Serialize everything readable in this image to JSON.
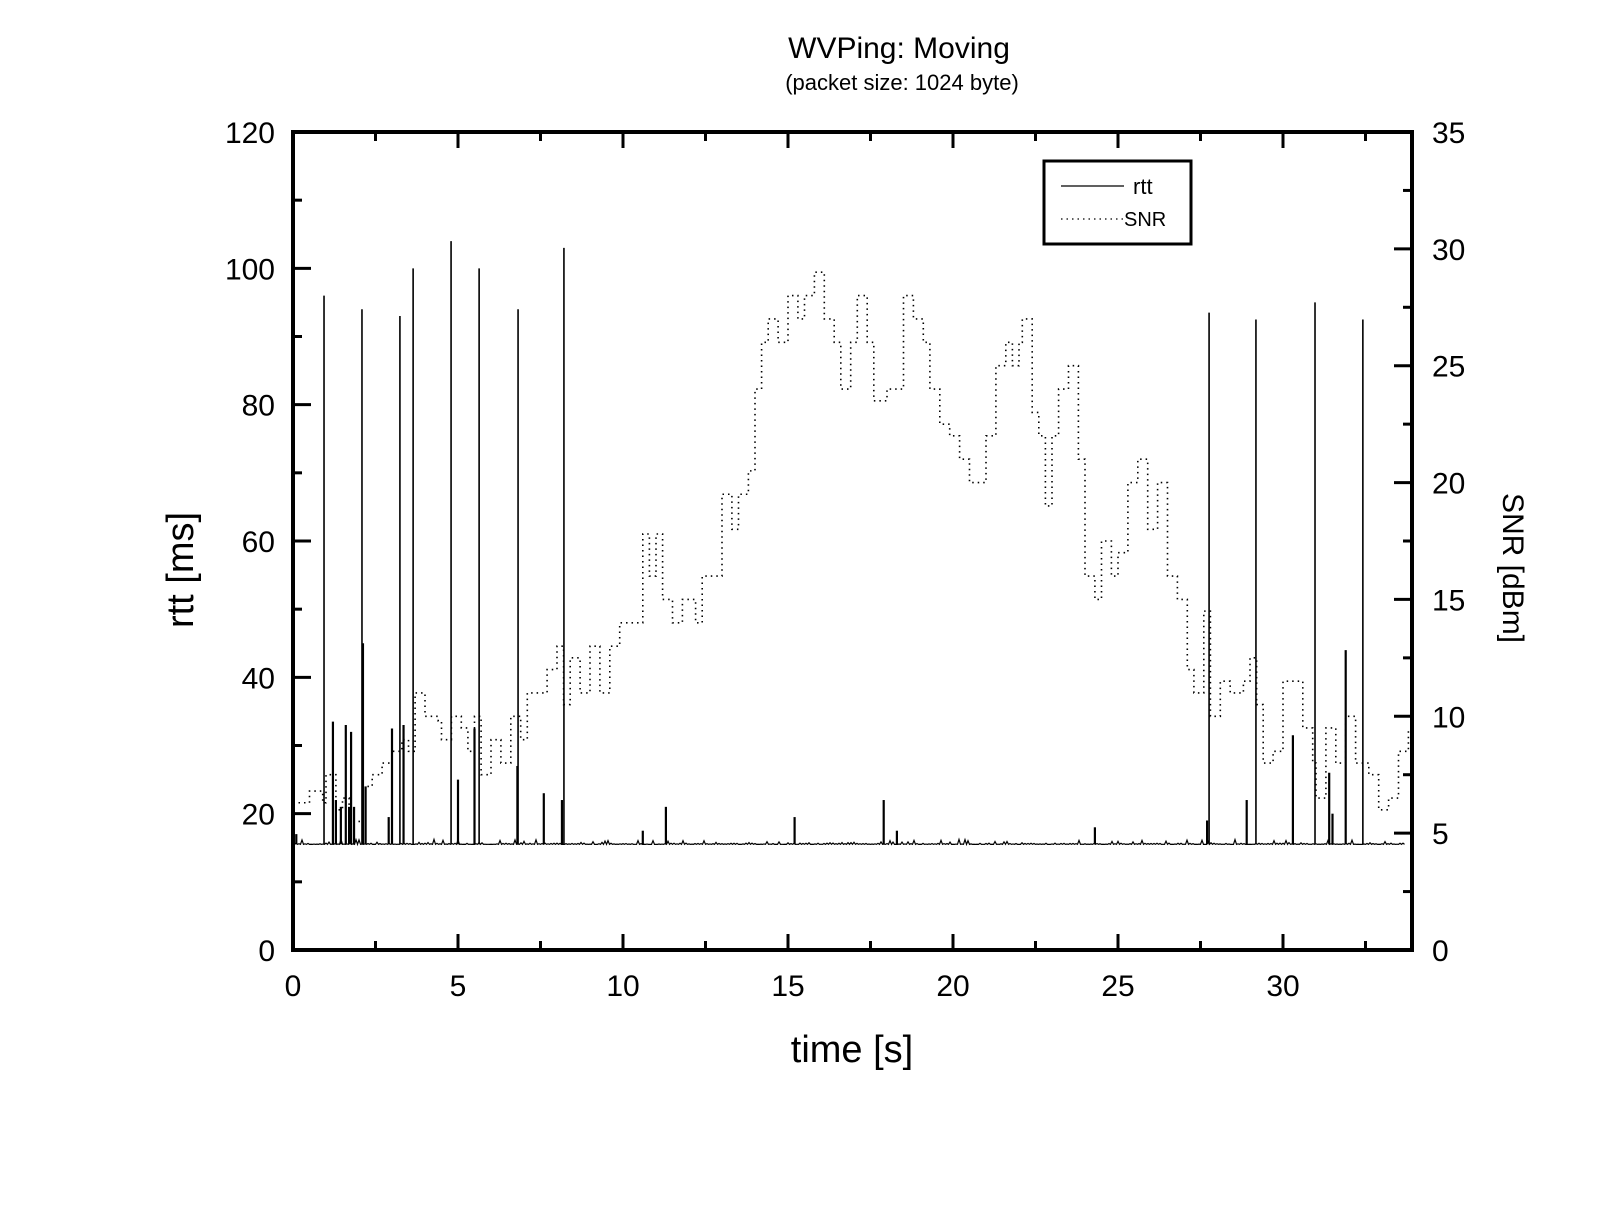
{
  "chart_data": {
    "type": "line",
    "title": "WVPing: Moving",
    "subtitle": "(packet size: 1024 byte)",
    "xlabel": "time [s]",
    "ylabel": "rtt [ms]",
    "y2label": "SNR [dBm]",
    "xlim": [
      0,
      33.9
    ],
    "ylim": [
      0,
      120
    ],
    "y2lim": [
      0,
      35
    ],
    "xticks": [
      0,
      5,
      10,
      15,
      20,
      25,
      30
    ],
    "yticks": [
      0,
      20,
      40,
      60,
      80,
      100,
      120
    ],
    "y2ticks": [
      0,
      5,
      10,
      15,
      20,
      25,
      30,
      35
    ],
    "grid": false,
    "legend": {
      "position": "upper-right",
      "entries": [
        "rtt",
        "SNR"
      ]
    },
    "series": [
      {
        "name": "rtt",
        "axis": "left",
        "style": "solid",
        "baseline": 15.5,
        "spikes": [
          [
            0.1,
            17
          ],
          [
            0.94,
            96
          ],
          [
            1.21,
            33.5
          ],
          [
            1.3,
            22
          ],
          [
            1.45,
            21
          ],
          [
            1.6,
            33
          ],
          [
            1.7,
            21
          ],
          [
            1.76,
            32
          ],
          [
            1.85,
            21
          ],
          [
            2.09,
            94
          ],
          [
            2.12,
            45
          ],
          [
            2.2,
            24
          ],
          [
            2.9,
            19.5
          ],
          [
            3.0,
            32.5
          ],
          [
            3.24,
            93
          ],
          [
            3.35,
            33
          ],
          [
            3.64,
            100
          ],
          [
            4.79,
            104
          ],
          [
            5.0,
            25
          ],
          [
            5.5,
            32.5
          ],
          [
            5.64,
            100
          ],
          [
            6.82,
            94
          ],
          [
            6.8,
            27
          ],
          [
            7.6,
            23
          ],
          [
            8.21,
            103
          ],
          [
            8.15,
            22
          ],
          [
            10.6,
            17.5
          ],
          [
            11.3,
            21
          ],
          [
            15.2,
            19.5
          ],
          [
            17.9,
            22
          ],
          [
            18.3,
            17.5
          ],
          [
            24.3,
            18
          ],
          [
            27.76,
            93.5
          ],
          [
            27.7,
            19
          ],
          [
            28.9,
            22
          ],
          [
            29.18,
            92.5
          ],
          [
            30.3,
            31.5
          ],
          [
            30.97,
            95
          ],
          [
            31.4,
            26
          ],
          [
            31.5,
            20
          ],
          [
            31.9,
            44
          ],
          [
            32.42,
            92.5
          ]
        ]
      },
      {
        "name": "SNR",
        "axis": "right",
        "style": "dotted",
        "points": [
          [
            0.0,
            6.3
          ],
          [
            0.5,
            6.8
          ],
          [
            0.9,
            6.3
          ],
          [
            1.0,
            7.5
          ],
          [
            1.3,
            6.0
          ],
          [
            1.5,
            6.5
          ],
          [
            1.7,
            5.5
          ],
          [
            2.1,
            7.0
          ],
          [
            2.4,
            7.5
          ],
          [
            2.7,
            8.0
          ],
          [
            3.0,
            8.5
          ],
          [
            3.3,
            9.0
          ],
          [
            3.5,
            8.5
          ],
          [
            3.7,
            11.0
          ],
          [
            4.0,
            10.0
          ],
          [
            4.4,
            9.8
          ],
          [
            4.5,
            9.0
          ],
          [
            4.8,
            10.0
          ],
          [
            5.1,
            9.5
          ],
          [
            5.3,
            8.5
          ],
          [
            5.5,
            10.0
          ],
          [
            5.7,
            7.5
          ],
          [
            6.0,
            9.0
          ],
          [
            6.3,
            8.0
          ],
          [
            6.6,
            10.0
          ],
          [
            6.9,
            9.0
          ],
          [
            7.1,
            11.0
          ],
          [
            7.5,
            11.0
          ],
          [
            7.7,
            12.0
          ],
          [
            8.0,
            13.0
          ],
          [
            8.2,
            10.5
          ],
          [
            8.4,
            12.5
          ],
          [
            8.7,
            11.0
          ],
          [
            9.0,
            13.0
          ],
          [
            9.3,
            11.0
          ],
          [
            9.6,
            13.0
          ],
          [
            9.9,
            14.0
          ],
          [
            10.3,
            14.0
          ],
          [
            10.6,
            17.8
          ],
          [
            10.8,
            16.0
          ],
          [
            11.0,
            17.8
          ],
          [
            11.2,
            15.0
          ],
          [
            11.5,
            14.0
          ],
          [
            11.8,
            15.0
          ],
          [
            12.2,
            14.0
          ],
          [
            12.4,
            16.0
          ],
          [
            12.7,
            16.0
          ],
          [
            13.0,
            19.5
          ],
          [
            13.3,
            18.0
          ],
          [
            13.5,
            19.5
          ],
          [
            13.8,
            20.5
          ],
          [
            14.0,
            24.0
          ],
          [
            14.2,
            26.0
          ],
          [
            14.4,
            27.0
          ],
          [
            14.7,
            26.0
          ],
          [
            15.0,
            28.0
          ],
          [
            15.3,
            27.0
          ],
          [
            15.5,
            28.0
          ],
          [
            15.8,
            29.0
          ],
          [
            16.1,
            27.0
          ],
          [
            16.4,
            26.0
          ],
          [
            16.6,
            24.0
          ],
          [
            16.9,
            26.0
          ],
          [
            17.1,
            28.0
          ],
          [
            17.4,
            26.0
          ],
          [
            17.6,
            23.5
          ],
          [
            18.0,
            24.0
          ],
          [
            18.3,
            24.0
          ],
          [
            18.5,
            28.0
          ],
          [
            18.8,
            27.0
          ],
          [
            19.1,
            26.0
          ],
          [
            19.3,
            24.0
          ],
          [
            19.6,
            22.5
          ],
          [
            19.9,
            22.0
          ],
          [
            20.2,
            21.0
          ],
          [
            20.5,
            20.0
          ],
          [
            20.8,
            20.0
          ],
          [
            21.0,
            22.0
          ],
          [
            21.3,
            25.0
          ],
          [
            21.6,
            26.0
          ],
          [
            21.8,
            25.0
          ],
          [
            22.0,
            26.0
          ],
          [
            22.1,
            27.0
          ],
          [
            22.4,
            23.0
          ],
          [
            22.6,
            22.0
          ],
          [
            22.8,
            19.0
          ],
          [
            23.0,
            22.0
          ],
          [
            23.2,
            24.0
          ],
          [
            23.5,
            25.0
          ],
          [
            23.8,
            21.0
          ],
          [
            24.0,
            16.0
          ],
          [
            24.3,
            15.0
          ],
          [
            24.5,
            17.5
          ],
          [
            24.8,
            16.0
          ],
          [
            25.0,
            17.0
          ],
          [
            25.3,
            20.0
          ],
          [
            25.6,
            21.0
          ],
          [
            25.9,
            18.0
          ],
          [
            26.2,
            20.0
          ],
          [
            26.5,
            16.0
          ],
          [
            26.8,
            15.0
          ],
          [
            27.1,
            12.0
          ],
          [
            27.3,
            11.0
          ],
          [
            27.6,
            14.5
          ],
          [
            27.8,
            10.0
          ],
          [
            28.1,
            11.5
          ],
          [
            28.4,
            11.0
          ],
          [
            28.8,
            11.5
          ],
          [
            29.0,
            12.5
          ],
          [
            29.2,
            10.5
          ],
          [
            29.4,
            8.0
          ],
          [
            29.7,
            8.5
          ],
          [
            30.0,
            11.5
          ],
          [
            30.4,
            11.5
          ],
          [
            30.6,
            9.5
          ],
          [
            30.9,
            8.0
          ],
          [
            31.0,
            6.5
          ],
          [
            31.3,
            9.5
          ],
          [
            31.6,
            8.0
          ],
          [
            31.9,
            10.0
          ],
          [
            32.2,
            8.0
          ],
          [
            32.6,
            7.5
          ],
          [
            32.9,
            6.0
          ],
          [
            33.2,
            6.5
          ],
          [
            33.5,
            8.5
          ],
          [
            33.8,
            9.5
          ]
        ]
      }
    ]
  }
}
